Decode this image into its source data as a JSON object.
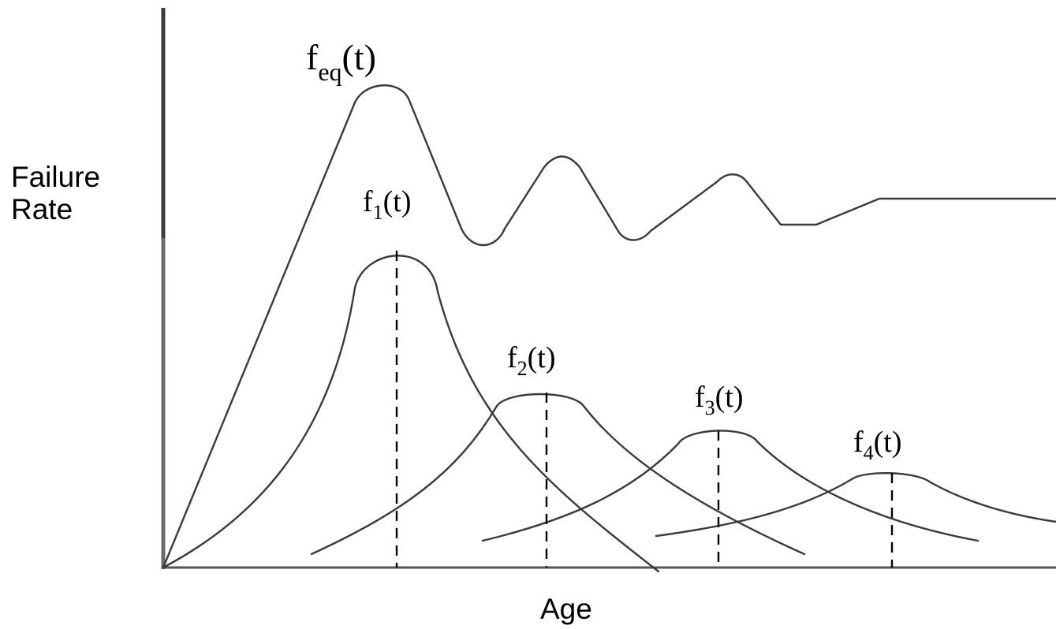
{
  "axes": {
    "y_label_line1": "Failure",
    "y_label_line2": "Rate",
    "x_label": "Age"
  },
  "curves": [
    {
      "id": "feq",
      "base": "f",
      "sub": "eq",
      "arg": "(t)"
    },
    {
      "id": "f1",
      "base": "f",
      "sub": "1",
      "arg": "(t)"
    },
    {
      "id": "f2",
      "base": "f",
      "sub": "2",
      "arg": "(t)"
    },
    {
      "id": "f3",
      "base": "f",
      "sub": "3",
      "arg": "(t)"
    },
    {
      "id": "f4",
      "base": "f",
      "sub": "4",
      "arg": "(t)"
    }
  ],
  "colors": {
    "curve": "#3a3a3a",
    "axis_upper": "#3a3a3a",
    "axis_lower": "#6b6b6b",
    "baseline": "#555555"
  }
}
